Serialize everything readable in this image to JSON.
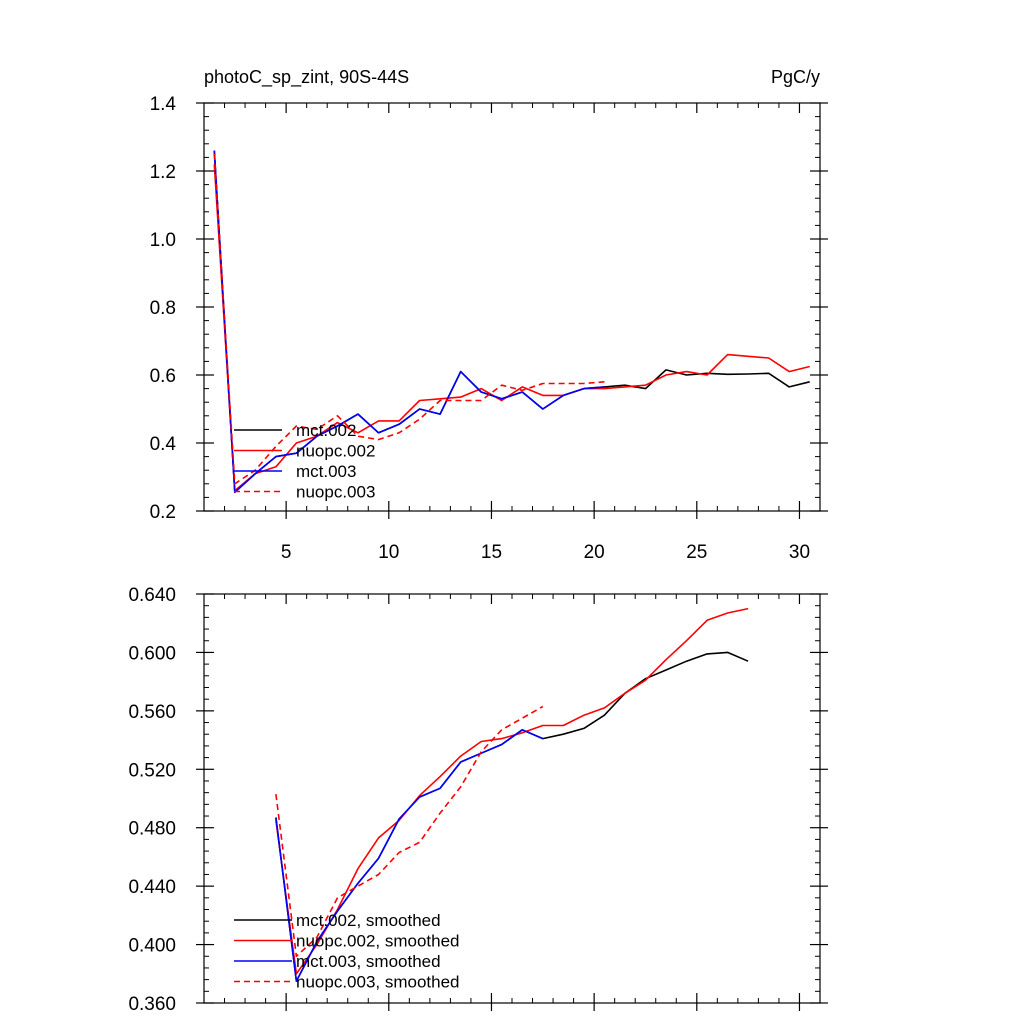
{
  "chart_data": [
    {
      "type": "line",
      "title": "photoC_sp_zint, 90S-44S",
      "units_label": "PgC/y",
      "xlim": [
        1,
        31
      ],
      "ylim": [
        0.2,
        1.4
      ],
      "xticks": [
        5,
        10,
        15,
        20,
        25,
        30
      ],
      "yticks": [
        0.2,
        0.4,
        0.6,
        0.8,
        1.0,
        1.2,
        1.4
      ],
      "ytick_labels": [
        "0.2",
        "0.4",
        "0.6",
        "0.8",
        "1.0",
        "1.2",
        "1.4"
      ],
      "legend_position": "bottom-left",
      "series": [
        {
          "name": "mct.002",
          "color": "#000000",
          "dash": "solid",
          "x": [
            1.5,
            2.5,
            3.5,
            4.5,
            5.5,
            6.5,
            7.5,
            8.5,
            9.5,
            10.5,
            11.5,
            12.5,
            13.5,
            14.5,
            15.5,
            16.5,
            17.5,
            18.5,
            19.5,
            20.5,
            21.5,
            22.5,
            23.5,
            24.5,
            25.5,
            26.5,
            27.5,
            28.5,
            29.5,
            30.5
          ],
          "y": [
            1.26,
            0.255,
            0.31,
            0.36,
            0.37,
            0.42,
            0.45,
            0.485,
            0.43,
            0.455,
            0.5,
            0.485,
            0.61,
            0.55,
            0.53,
            0.55,
            0.5,
            0.54,
            0.56,
            0.565,
            0.57,
            0.56,
            0.615,
            0.6,
            0.605,
            0.602,
            0.603,
            0.605,
            0.565,
            0.58
          ]
        },
        {
          "name": "nuopc.002",
          "color": "#ff0000",
          "dash": "solid",
          "x": [
            1.5,
            2.5,
            3.5,
            4.5,
            5.5,
            6.5,
            7.5,
            8.5,
            9.5,
            10.5,
            11.5,
            12.5,
            13.5,
            14.5,
            15.5,
            16.5,
            17.5,
            18.5,
            19.5,
            20.5,
            21.5,
            22.5,
            23.5,
            24.5,
            25.5,
            26.5,
            27.5,
            28.5,
            29.5,
            30.5
          ],
          "y": [
            1.22,
            0.26,
            0.31,
            0.33,
            0.4,
            0.42,
            0.46,
            0.43,
            0.465,
            0.465,
            0.525,
            0.53,
            0.535,
            0.56,
            0.525,
            0.565,
            0.54,
            0.54,
            0.56,
            0.56,
            0.565,
            0.57,
            0.6,
            0.61,
            0.6,
            0.66,
            0.655,
            0.65,
            0.61,
            0.625
          ]
        },
        {
          "name": "mct.003",
          "color": "#0000ff",
          "dash": "solid",
          "x": [
            1.5,
            2.5,
            3.5,
            4.5,
            5.5,
            6.5,
            7.5,
            8.5,
            9.5,
            10.5,
            11.5,
            12.5,
            13.5,
            14.5,
            15.5,
            16.5,
            17.5,
            18.5,
            19.5,
            20.5
          ],
          "y": [
            1.26,
            0.255,
            0.31,
            0.36,
            0.37,
            0.42,
            0.45,
            0.485,
            0.43,
            0.455,
            0.5,
            0.485,
            0.61,
            0.55,
            0.53,
            0.55,
            0.5,
            0.54,
            0.56,
            0.565
          ]
        },
        {
          "name": "nuopc.003",
          "color": "#ff0000",
          "dash": "dashed",
          "x": [
            1.5,
            2.5,
            3.5,
            4.5,
            5.5,
            6.5,
            7.5,
            8.5,
            9.5,
            10.5,
            11.5,
            12.5,
            13.5,
            14.5,
            15.5,
            16.5,
            17.5,
            18.5,
            19.5,
            20.5
          ],
          "y": [
            1.25,
            0.28,
            0.32,
            0.39,
            0.45,
            0.44,
            0.48,
            0.42,
            0.41,
            0.43,
            0.47,
            0.525,
            0.525,
            0.525,
            0.57,
            0.555,
            0.575,
            0.575,
            0.575,
            0.58
          ]
        }
      ]
    },
    {
      "type": "line",
      "xlim": [
        1,
        31
      ],
      "ylim": [
        0.36,
        0.64
      ],
      "xticks": [
        5,
        10,
        15,
        20,
        25,
        30
      ],
      "yticks": [
        0.36,
        0.4,
        0.44,
        0.48,
        0.52,
        0.56,
        0.6,
        0.64
      ],
      "ytick_labels": [
        "0.360",
        "0.400",
        "0.440",
        "0.480",
        "0.520",
        "0.560",
        "0.600",
        "0.640"
      ],
      "legend_position": "bottom-left",
      "series": [
        {
          "name": "mct.002, smoothed",
          "color": "#000000",
          "dash": "solid",
          "x": [
            4.5,
            5.5,
            6.5,
            7.5,
            8.5,
            9.5,
            10.5,
            11.5,
            12.5,
            13.5,
            14.5,
            15.5,
            16.5,
            17.5,
            18.5,
            19.5,
            20.5,
            21.5,
            22.5,
            23.5,
            24.5,
            25.5,
            26.5,
            27.5
          ],
          "y": [
            0.487,
            0.375,
            0.402,
            0.423,
            0.442,
            0.459,
            0.486,
            0.501,
            0.507,
            0.525,
            0.531,
            0.537,
            0.547,
            0.541,
            0.544,
            0.548,
            0.557,
            0.572,
            0.582,
            0.588,
            0.594,
            0.599,
            0.6,
            0.594
          ]
        },
        {
          "name": "nuopc.002, smoothed",
          "color": "#ff0000",
          "dash": "solid",
          "x": [
            4.5,
            5.5,
            6.5,
            7.5,
            8.5,
            9.5,
            10.5,
            11.5,
            12.5,
            13.5,
            14.5,
            15.5,
            16.5,
            17.5,
            18.5,
            19.5,
            20.5,
            21.5,
            22.5,
            23.5,
            24.5,
            25.5,
            26.5,
            27.5
          ],
          "y": [
            0.485,
            0.38,
            0.4,
            0.424,
            0.452,
            0.473,
            0.485,
            0.502,
            0.515,
            0.529,
            0.539,
            0.541,
            0.545,
            0.55,
            0.55,
            0.557,
            0.562,
            0.572,
            0.581,
            0.595,
            0.608,
            0.622,
            0.627,
            0.63
          ]
        },
        {
          "name": "mct.003, smoothed",
          "color": "#0000ff",
          "dash": "solid",
          "x": [
            4.5,
            5.5,
            6.5,
            7.5,
            8.5,
            9.5,
            10.5,
            11.5,
            12.5,
            13.5,
            14.5,
            15.5,
            16.5,
            17.5
          ],
          "y": [
            0.487,
            0.375,
            0.402,
            0.423,
            0.442,
            0.459,
            0.486,
            0.501,
            0.507,
            0.525,
            0.531,
            0.537,
            0.547,
            0.541
          ]
        },
        {
          "name": "nuopc.003, smoothed",
          "color": "#ff0000",
          "dash": "dashed",
          "x": [
            4.5,
            5.5,
            6.5,
            7.5,
            8.5,
            9.5,
            10.5,
            11.5,
            12.5,
            13.5,
            14.5,
            15.5,
            16.5,
            17.5
          ],
          "y": [
            0.503,
            0.392,
            0.405,
            0.432,
            0.44,
            0.448,
            0.463,
            0.47,
            0.49,
            0.508,
            0.532,
            0.547,
            0.555,
            0.563
          ]
        }
      ]
    }
  ]
}
